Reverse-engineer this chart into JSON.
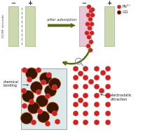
{
  "bg_color": "#ffffff",
  "electrode_green_color": "#ccd9b0",
  "electrode_pink_color": "#e8c8d8",
  "dashed_line_color": "#999999",
  "pb_color": "#cc2222",
  "pb_edge_color": "#ee6666",
  "go_color": "#3a1500",
  "go_edge_color": "#cc5500",
  "arrow_color": "#5a6a10",
  "arrow_text": "after adsorption",
  "label_minus": "−",
  "label_plus": "+",
  "legend_pb": "Pb²⁺",
  "legend_go": "GO",
  "text_chemical": "chemical\nbonding",
  "text_electrostatic": "electrostatic\nattraction",
  "go_nf_label": "GO/NF electrode",
  "bottom_box_color": "#dde8e8",
  "bottom_box_edge": "#aaaaaa",
  "electrode_edge_green": "#aabb88",
  "electrode_edge_pink": "#cc9999"
}
